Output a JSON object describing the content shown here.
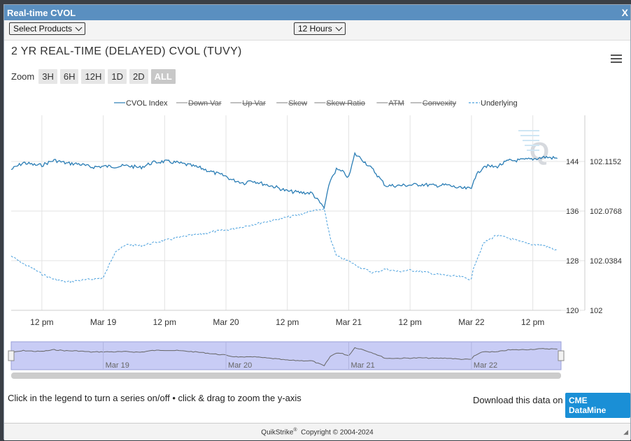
{
  "window": {
    "title": "Real-time CVOL",
    "close_label": "X"
  },
  "toolbar": {
    "products_label": "Select Products",
    "interval_label": "12 Hours"
  },
  "chart_title": "2 YR REAL-TIME (DELAYED) CVOL (TUVY)",
  "zoom": {
    "label": "Zoom",
    "buttons": [
      "3H",
      "6H",
      "12H",
      "1D",
      "2D",
      "ALL"
    ],
    "active": "ALL"
  },
  "help_text": "Click in the legend to turn a series on/off • click & drag to zoom the y-axis",
  "download": {
    "text": "Download this data on",
    "button": "CME DataMine"
  },
  "footer": {
    "brand": "QuikStrike",
    "mark": "®",
    "copyright": "Copyright © 2004-2024"
  },
  "colors": {
    "cvol": "#2a7db5",
    "underlying": "#4aa0dd",
    "navigator_fill": "#c8ccf5"
  },
  "chart_data": {
    "type": "line",
    "title": "2 YR REAL-TIME (DELAYED) CVOL (TUVY)",
    "legend": [
      {
        "name": "CVOL Index",
        "visible": true,
        "style": "solid"
      },
      {
        "name": "Down Var",
        "visible": false,
        "style": "solid"
      },
      {
        "name": "Up Var",
        "visible": false,
        "style": "solid"
      },
      {
        "name": "Skew",
        "visible": false,
        "style": "solid"
      },
      {
        "name": "Skew Ratio",
        "visible": false,
        "style": "solid"
      },
      {
        "name": "ATM",
        "visible": false,
        "style": "solid"
      },
      {
        "name": "Convexity",
        "visible": false,
        "style": "solid"
      },
      {
        "name": "Underlying",
        "visible": true,
        "style": "dashed"
      }
    ],
    "x_ticks": [
      "12 pm",
      "Mar 19",
      "12 pm",
      "Mar 20",
      "12 pm",
      "Mar 21",
      "12 pm",
      "Mar 22",
      "12 pm"
    ],
    "x_range_days": [
      0.25,
      4.73
    ],
    "x_tick_positions_days": [
      0.5,
      1,
      1.5,
      2,
      2.5,
      3,
      3.5,
      4,
      4.5
    ],
    "y_left": {
      "ticks": [
        "144",
        "136",
        "128",
        "120"
      ],
      "tick_values": [
        144,
        136,
        128,
        120
      ],
      "range": [
        120,
        144
      ]
    },
    "y_right": {
      "ticks": [
        "102.1152",
        "102.0768",
        "102.0384",
        "102"
      ],
      "tick_values": [
        102.1152,
        102.0768,
        102.0384,
        102.0
      ],
      "range": [
        102.0,
        102.1152
      ]
    },
    "grid": true,
    "legend_position": "top",
    "series": [
      {
        "name": "CVOL Index",
        "axis": "left",
        "x": [
          0.25,
          0.35,
          0.45,
          0.5,
          0.6,
          0.7,
          0.8,
          0.9,
          1.0,
          1.1,
          1.2,
          1.3,
          1.4,
          1.5,
          1.6,
          1.7,
          1.8,
          1.9,
          2.0,
          2.05,
          2.1,
          2.15,
          2.2,
          2.3,
          2.4,
          2.5,
          2.6,
          2.7,
          2.8,
          2.85,
          2.9,
          2.95,
          3.0,
          3.05,
          3.1,
          3.2,
          3.3,
          3.4,
          3.5,
          3.6,
          3.7,
          3.8,
          3.9,
          4.0,
          4.02,
          4.1,
          4.2,
          4.3,
          4.4,
          4.5,
          4.6,
          4.7
        ],
        "y": [
          142.7,
          143.8,
          143.4,
          143.4,
          144.2,
          143.7,
          143.6,
          143.1,
          143.2,
          143.2,
          143.3,
          143.0,
          143.8,
          144.0,
          143.8,
          143.4,
          142.9,
          142.2,
          141.6,
          141.0,
          140.8,
          140.5,
          141.0,
          140.4,
          139.9,
          139.2,
          139.0,
          138.9,
          136.5,
          141.0,
          142.7,
          142.3,
          141.4,
          145.2,
          144.5,
          142.6,
          140.1,
          140.1,
          140.2,
          140.3,
          140.1,
          140.2,
          139.7,
          139.6,
          141.2,
          143.3,
          143.1,
          144.1,
          144.2,
          144.4,
          144.7,
          144.5
        ]
      },
      {
        "name": "Underlying",
        "axis": "right",
        "x": [
          0.25,
          0.35,
          0.45,
          0.5,
          0.6,
          0.7,
          0.8,
          0.9,
          1.0,
          1.1,
          1.2,
          1.3,
          1.4,
          1.5,
          1.6,
          1.7,
          1.8,
          1.9,
          2.0,
          2.1,
          2.2,
          2.3,
          2.4,
          2.5,
          2.6,
          2.7,
          2.8,
          2.85,
          2.9,
          3.0,
          3.1,
          3.2,
          3.3,
          3.4,
          3.5,
          3.6,
          3.7,
          3.8,
          3.9,
          4.0,
          4.02,
          4.1,
          4.2,
          4.3,
          4.4,
          4.5,
          4.6,
          4.7
        ],
        "y": [
          102.042,
          102.036,
          102.031,
          102.028,
          102.024,
          102.022,
          102.023,
          102.024,
          102.025,
          102.046,
          102.051,
          102.05,
          102.052,
          102.054,
          102.056,
          102.058,
          102.059,
          102.061,
          102.062,
          102.064,
          102.066,
          102.068,
          102.07,
          102.072,
          102.074,
          102.077,
          102.078,
          102.056,
          102.042,
          102.038,
          102.033,
          102.029,
          102.032,
          102.03,
          102.031,
          102.03,
          102.028,
          102.027,
          102.026,
          102.024,
          102.034,
          102.052,
          102.058,
          102.056,
          102.053,
          102.051,
          102.05,
          102.046
        ]
      }
    ],
    "navigator": {
      "ticks": [
        "Mar 19",
        "Mar 20",
        "Mar 21",
        "Mar 22"
      ]
    }
  }
}
